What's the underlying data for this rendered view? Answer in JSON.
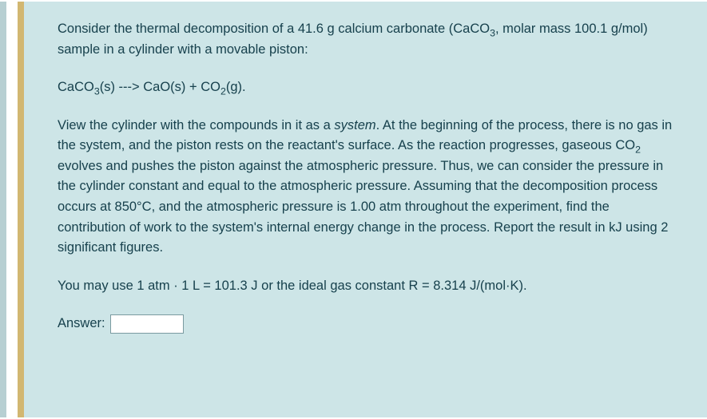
{
  "colors": {
    "rail1": "#b7cfd2",
    "rail2": "#d2b771",
    "content_bg": "#cde5e7",
    "text": "#17414d",
    "input_border": "#7a9aa0"
  },
  "question": {
    "p1_pre": "Consider the thermal decomposition of a 41.6 g calcium carbonate (CaCO",
    "p1_mid": ", molar mass 100.1 g/mol) sample in a cylinder with a movable piston:",
    "eq_a": "CaCO",
    "eq_b": "(s) ---> CaO(s) + CO",
    "eq_c": "(g).",
    "p2_a": "View the cylinder with the compounds in it as a ",
    "p2_em": "system",
    "p2_b": ". At the beginning of the process, there is no gas in the system, and the piston rests on the reactant's surface. As the reaction progresses, gaseous CO",
    "p2_c": " evolves and pushes the piston against the atmospheric pressure. Thus, we can consider the pressure in the cylinder constant and equal to the atmospheric pressure. Assuming that the decomposition process occurs at 850°C, and the atmospheric pressure is 1.00 atm throughout the experiment, find the contribution of work to the system's internal energy change in the process. Report the result in kJ using 2 significant figures.",
    "p3": "You may use 1 atm · 1 L = 101.3 J or the ideal gas constant R = 8.314 J/(mol·K).",
    "answer_label": "Answer:",
    "answer_value": ""
  }
}
